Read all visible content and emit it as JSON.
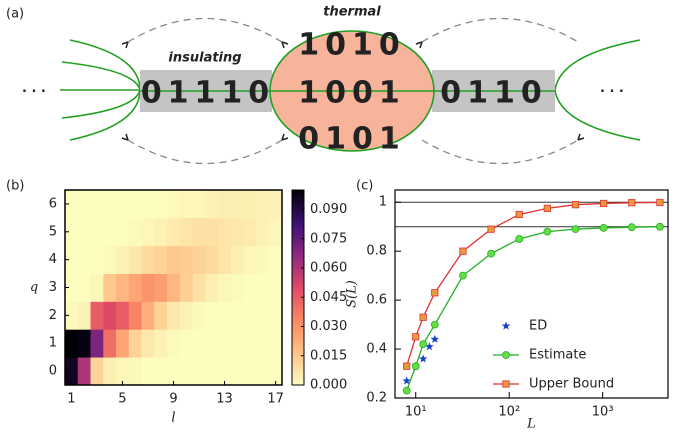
{
  "diagram": {
    "label": "(a)",
    "insulating": "insulating",
    "thermal": "thermal",
    "left_bits": "01110",
    "thermal_bits": [
      "1010",
      "1001",
      "0101"
    ],
    "right_bits": "0110"
  },
  "chart_data": [
    {
      "type": "heatmap",
      "label": "(b)",
      "xlabel": "l",
      "ylabel": "q",
      "x": [
        1,
        2,
        3,
        4,
        5,
        6,
        7,
        8,
        9,
        10,
        11,
        12,
        13,
        14,
        15,
        16,
        17
      ],
      "y": [
        0,
        1,
        2,
        3,
        4,
        5,
        6
      ],
      "z": [
        [
          0.095,
          0.06,
          0.012,
          0.004,
          0.002,
          0.001,
          0,
          0,
          0,
          0,
          0,
          0,
          0,
          0,
          0,
          0,
          0
        ],
        [
          0.1,
          0.098,
          0.07,
          0.04,
          0.025,
          0.012,
          0.006,
          0.003,
          0.001,
          0,
          0,
          0,
          0,
          0,
          0,
          0,
          0
        ],
        [
          0.001,
          0.003,
          0.045,
          0.05,
          0.045,
          0.035,
          0.022,
          0.012,
          0.006,
          0.003,
          0.001,
          0,
          0,
          0,
          0,
          0,
          0
        ],
        [
          0,
          0,
          0.002,
          0.015,
          0.02,
          0.025,
          0.03,
          0.027,
          0.02,
          0.013,
          0.008,
          0.004,
          0.002,
          0.001,
          0,
          0,
          0
        ],
        [
          0,
          0,
          0,
          0.001,
          0.003,
          0.006,
          0.01,
          0.012,
          0.015,
          0.014,
          0.012,
          0.01,
          0.007,
          0.004,
          0.002,
          0.001,
          0
        ],
        [
          0,
          0,
          0,
          0,
          0,
          0.001,
          0.002,
          0.003,
          0.005,
          0.007,
          0.008,
          0.008,
          0.007,
          0.006,
          0.005,
          0.003,
          0.002
        ],
        [
          0,
          0,
          0,
          0,
          0,
          0,
          0,
          0,
          0.001,
          0.002,
          0.002,
          0.003,
          0.004,
          0.004,
          0.004,
          0.003,
          0.003
        ]
      ],
      "xlim": [
        0.5,
        17.5
      ],
      "ylim": [
        -0.5,
        6.5
      ],
      "xticks": [
        1,
        5,
        9,
        13,
        17
      ],
      "yticks": [
        0,
        1,
        2,
        3,
        4,
        5,
        6
      ],
      "zlim": [
        0,
        0.1
      ],
      "colorscale": [
        "#fcfdbf",
        "#fec287",
        "#fb8861",
        "#de4968",
        "#8c2981",
        "#3b0f70",
        "#000004"
      ],
      "colorbar_ticks": [
        {
          "value": 0,
          "label": "0.000"
        },
        {
          "value": 0.015,
          "label": "0.015"
        },
        {
          "value": 0.03,
          "label": "0.030"
        },
        {
          "value": 0.045,
          "label": "0.045"
        },
        {
          "value": 0.06,
          "label": "0.060"
        },
        {
          "value": 0.075,
          "label": "0.075"
        },
        {
          "value": 0.09,
          "label": "0.090"
        }
      ]
    },
    {
      "type": "line",
      "label": "(c)",
      "xlabel": "L",
      "ylabel": "S(L)",
      "xscale": "log",
      "xlim": [
        6,
        5000
      ],
      "ylim": [
        0.2,
        1.05
      ],
      "xticks": [
        {
          "value": 10,
          "label": "10¹"
        },
        {
          "value": 100,
          "label": "10²"
        },
        {
          "value": 1000,
          "label": "10³"
        }
      ],
      "yticks": [
        0.2,
        0.4,
        0.6,
        0.8,
        1
      ],
      "reference_lines": [
        1,
        0.9
      ],
      "reference_color": "#333333",
      "legend": "lower right",
      "series": [
        {
          "name": "ED",
          "color": "#1a3fd0",
          "marker": "star",
          "line": false,
          "x": [
            8,
            10,
            12,
            14,
            16
          ],
          "values": [
            0.27,
            0.33,
            0.36,
            0.41,
            0.44
          ]
        },
        {
          "name": "Estimate",
          "color": "#22b022",
          "marker_color": "#66dd44",
          "marker": "circle",
          "line": true,
          "x": [
            8,
            10,
            12,
            16,
            32,
            64,
            128,
            256,
            512,
            1024,
            2048,
            4096
          ],
          "values": [
            0.23,
            0.33,
            0.42,
            0.5,
            0.7,
            0.79,
            0.85,
            0.88,
            0.89,
            0.895,
            0.898,
            0.9
          ]
        },
        {
          "name": "Upper Bound",
          "color": "#e03030",
          "marker_color": "#e89a40",
          "marker": "square",
          "line": true,
          "x": [
            8,
            10,
            12,
            16,
            32,
            64,
            128,
            256,
            512,
            1024,
            2048,
            4096
          ],
          "values": [
            0.33,
            0.45,
            0.53,
            0.63,
            0.8,
            0.89,
            0.95,
            0.975,
            0.99,
            0.995,
            0.998,
            0.999
          ]
        }
      ]
    }
  ]
}
